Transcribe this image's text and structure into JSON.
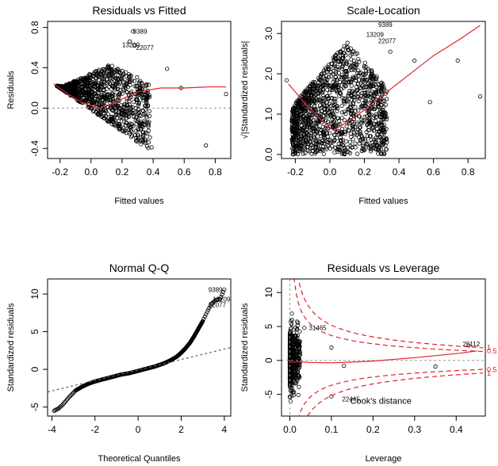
{
  "chart_data": [
    {
      "type": "scatter",
      "title": "Residuals vs Fitted",
      "xlabel": "Fitted values",
      "ylabel": "Residuals",
      "xticks": [
        "-0.2",
        "0.0",
        "0.2",
        "0.4",
        "0.6",
        "0.8"
      ],
      "yticks": [
        "-0.4",
        "0.0",
        "0.4",
        "0.8"
      ],
      "xlim": [
        -0.28,
        0.9
      ],
      "ylim": [
        -0.5,
        0.86
      ],
      "reference_line_y": 0,
      "annotations": [
        {
          "label": "9389",
          "x": 0.27,
          "y": 0.76
        },
        {
          "label": "13209",
          "x": 0.2,
          "y": 0.63
        },
        {
          "label": "22077",
          "x": 0.29,
          "y": 0.6
        }
      ],
      "outliers": [
        {
          "x": 0.39,
          "y": -0.39
        },
        {
          "x": 0.49,
          "y": 0.39
        },
        {
          "x": 0.58,
          "y": 0.2
        },
        {
          "x": 0.74,
          "y": -0.37
        },
        {
          "x": 0.87,
          "y": 0.14
        },
        {
          "x": 0.27,
          "y": 0.76
        },
        {
          "x": 0.25,
          "y": 0.66
        },
        {
          "x": 0.28,
          "y": 0.62
        }
      ],
      "smoother": {
        "x": [
          -0.24,
          -0.15,
          -0.05,
          0.05,
          0.12,
          0.2,
          0.3,
          0.45,
          0.6,
          0.75,
          0.87
        ],
        "y": [
          0.24,
          0.14,
          0.05,
          0.0,
          0.03,
          0.09,
          0.16,
          0.2,
          0.2,
          0.21,
          0.21
        ]
      },
      "line_color": "#e0232b",
      "ref_color": "#999999"
    },
    {
      "type": "scatter",
      "title": "Scale-Location",
      "xlabel": "Fitted values",
      "ylabel": "√|Standardized residuals|",
      "xticks": [
        "-0.2",
        "0.0",
        "0.2",
        "0.4",
        "0.6",
        "0.8"
      ],
      "yticks": [
        "0.0",
        "1.0",
        "2.0",
        "3.0"
      ],
      "xlim": [
        -0.28,
        0.9
      ],
      "ylim": [
        -0.1,
        3.3
      ],
      "annotations": [
        {
          "label": "9389",
          "x": 0.28,
          "y": 3.22
        },
        {
          "label": "13209",
          "x": 0.21,
          "y": 2.98
        },
        {
          "label": "22077",
          "x": 0.28,
          "y": 2.82
        }
      ],
      "outliers": [
        {
          "x": -0.25,
          "y": 1.84
        },
        {
          "x": 0.49,
          "y": 2.33
        },
        {
          "x": 0.74,
          "y": 2.33
        },
        {
          "x": 0.87,
          "y": 1.44
        },
        {
          "x": 0.58,
          "y": 1.3
        },
        {
          "x": 0.35,
          "y": 2.55
        }
      ],
      "smoother": {
        "x": [
          -0.24,
          -0.15,
          -0.05,
          0.02,
          0.1,
          0.2,
          0.3,
          0.45,
          0.6,
          0.75,
          0.87
        ],
        "y": [
          1.75,
          1.3,
          0.85,
          0.6,
          0.8,
          1.1,
          1.45,
          1.95,
          2.45,
          2.85,
          3.2
        ]
      },
      "line_color": "#e0232b"
    },
    {
      "type": "scatter",
      "title": "Normal Q-Q",
      "xlabel": "Theoretical Quantiles",
      "ylabel": "Standardized residuals",
      "xticks": [
        "-4",
        "-2",
        "0",
        "2",
        "4"
      ],
      "yticks": [
        "-5",
        "0",
        "5",
        "10"
      ],
      "xlim": [
        -4.2,
        4.3
      ],
      "ylim": [
        -6.2,
        12.0
      ],
      "annotations": [
        {
          "label": "9389",
          "x": 3.7,
          "y": 10.6
        },
        {
          "label": "13209",
          "x": 3.9,
          "y": 9.3
        },
        {
          "label": "22077",
          "x": 3.7,
          "y": 8.6
        }
      ],
      "qq_points": {
        "x": [
          -3.9,
          -3.7,
          -3.5,
          -3.3,
          -3.1,
          -2.9,
          -2.6,
          -2.3,
          -2.0,
          -1.6,
          -1.2,
          -0.8,
          -0.4,
          0.0,
          0.4,
          0.8,
          1.2,
          1.5,
          1.8,
          2.0,
          2.2,
          2.4,
          2.6,
          2.8,
          3.0,
          3.2,
          3.4,
          3.6,
          3.8,
          4.0
        ],
        "y": [
          -5.5,
          -5.2,
          -4.7,
          -4.0,
          -3.4,
          -2.8,
          -2.3,
          -1.9,
          -1.6,
          -1.3,
          -1.0,
          -0.7,
          -0.5,
          -0.2,
          0.1,
          0.4,
          0.8,
          1.2,
          1.7,
          2.2,
          2.8,
          3.5,
          4.4,
          5.4,
          6.4,
          7.6,
          8.7,
          9.2,
          9.3,
          10.6
        ]
      },
      "reference_line": {
        "x": [
          -4.2,
          4.3
        ],
        "y": [
          -3.0,
          2.9
        ]
      },
      "ref_color": "#666666"
    },
    {
      "type": "scatter",
      "title": "Residuals vs Leverage",
      "xlabel": "Leverage",
      "ylabel": "Standardized residuals",
      "xticks": [
        "0.0",
        "0.1",
        "0.2",
        "0.3",
        "0.4"
      ],
      "yticks": [
        "-5",
        "0",
        "5",
        "10"
      ],
      "xlim": [
        -0.02,
        0.47
      ],
      "ylim": [
        -8.2,
        12.0
      ],
      "reference_line_y": 0,
      "legend_text": "Cook's distance",
      "contour_labels": [
        "1",
        "0.5",
        "0.5",
        "1"
      ],
      "annotations": [
        {
          "label": "31465",
          "x": 0.04,
          "y": 4.8
        },
        {
          "label": "25112",
          "x": 0.41,
          "y": 2.4
        },
        {
          "label": "22445",
          "x": 0.12,
          "y": -5.7
        }
      ],
      "outliers": [
        {
          "x": 0.43,
          "y": 2.2
        },
        {
          "x": 0.35,
          "y": -0.9
        },
        {
          "x": 0.1,
          "y": 1.9
        },
        {
          "x": 0.13,
          "y": -0.8
        },
        {
          "x": 0.035,
          "y": 4.8
        },
        {
          "x": 0.1,
          "y": -5.3
        }
      ],
      "smoother": {
        "x": [
          0.0,
          0.02,
          0.05,
          0.1,
          0.15,
          0.2,
          0.3,
          0.4,
          0.45
        ],
        "y": [
          -0.3,
          -0.2,
          -0.3,
          -0.35,
          -0.25,
          -0.1,
          0.4,
          1.0,
          1.4
        ]
      },
      "line_color": "#e0232b",
      "contour_color": "#e0232b"
    }
  ]
}
